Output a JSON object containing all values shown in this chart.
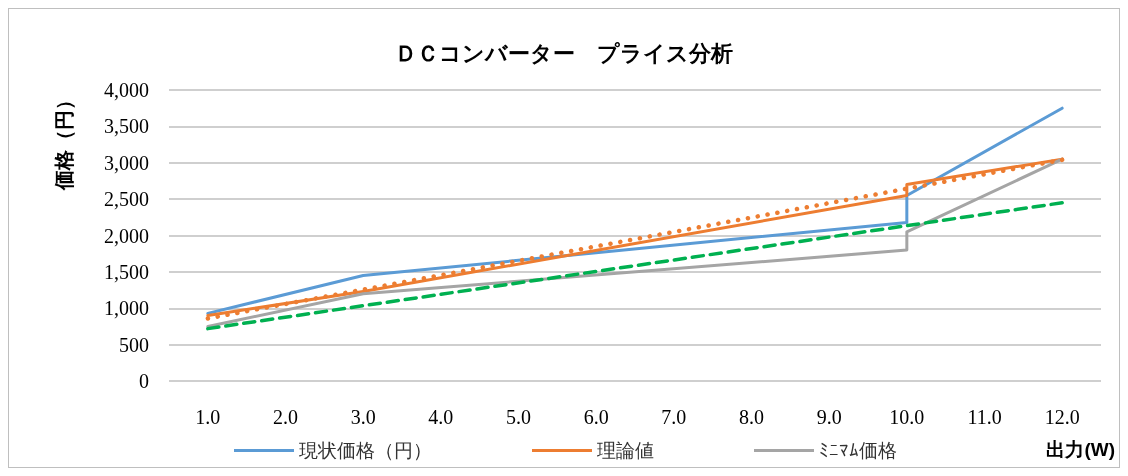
{
  "chart_data": {
    "type": "line",
    "title": "ＤＣコンバーター　プライス分析",
    "xlabel": "出力(W)",
    "ylabel": "価格（円）",
    "xlim": [
      0.5,
      12.5
    ],
    "xticks": [
      {
        "value": 1,
        "label": "1.0"
      },
      {
        "value": 2,
        "label": "2.0"
      },
      {
        "value": 3,
        "label": "3.0"
      },
      {
        "value": 4,
        "label": "4.0"
      },
      {
        "value": 5,
        "label": "5.0"
      },
      {
        "value": 6,
        "label": "6.0"
      },
      {
        "value": 7,
        "label": "7.0"
      },
      {
        "value": 8,
        "label": "8.0"
      },
      {
        "value": 9,
        "label": "9.0"
      },
      {
        "value": 10,
        "label": "10.0"
      },
      {
        "value": 11,
        "label": "11.0"
      },
      {
        "value": 12,
        "label": "12.0"
      }
    ],
    "ylim": [
      0,
      4000
    ],
    "yticks": [
      0,
      500,
      {
        "value": 1000,
        "label": "1,000"
      },
      {
        "value": 1500,
        "label": "1,500"
      },
      {
        "value": 2000,
        "label": "2,000"
      },
      {
        "value": 2500,
        "label": "2,500"
      },
      {
        "value": 3000,
        "label": "3,000"
      },
      {
        "value": 3500,
        "label": "3,500"
      },
      {
        "value": 4000,
        "label": "4,000"
      }
    ],
    "grid": "y",
    "legend": "bottom",
    "marker": "none",
    "series": [
      {
        "name": "現状価格（円）",
        "color": "#5b9bd5",
        "x": [
          1,
          3,
          10,
          10,
          12
        ],
        "values": [
          930,
          1450,
          2180,
          2550,
          3750
        ]
      },
      {
        "name": "理論値",
        "color": "#ed7d31",
        "x": [
          1,
          3,
          10,
          10,
          12
        ],
        "values": [
          900,
          1230,
          2550,
          2700,
          3050
        ]
      },
      {
        "name": "ﾐﾆﾏﾑ価格",
        "color": "#a5a5a5",
        "x": [
          1,
          3,
          10,
          10,
          12
        ],
        "values": [
          750,
          1200,
          1800,
          2050,
          3050
        ]
      },
      {
        "color": "#ed7d31",
        "line_style": "dotted",
        "x": [
          1,
          12
        ],
        "values": [
          860,
          3040
        ]
      },
      {
        "color": "#00b050",
        "line_style": "dashed",
        "x": [
          1,
          12
        ],
        "values": [
          720,
          2450
        ]
      }
    ]
  }
}
